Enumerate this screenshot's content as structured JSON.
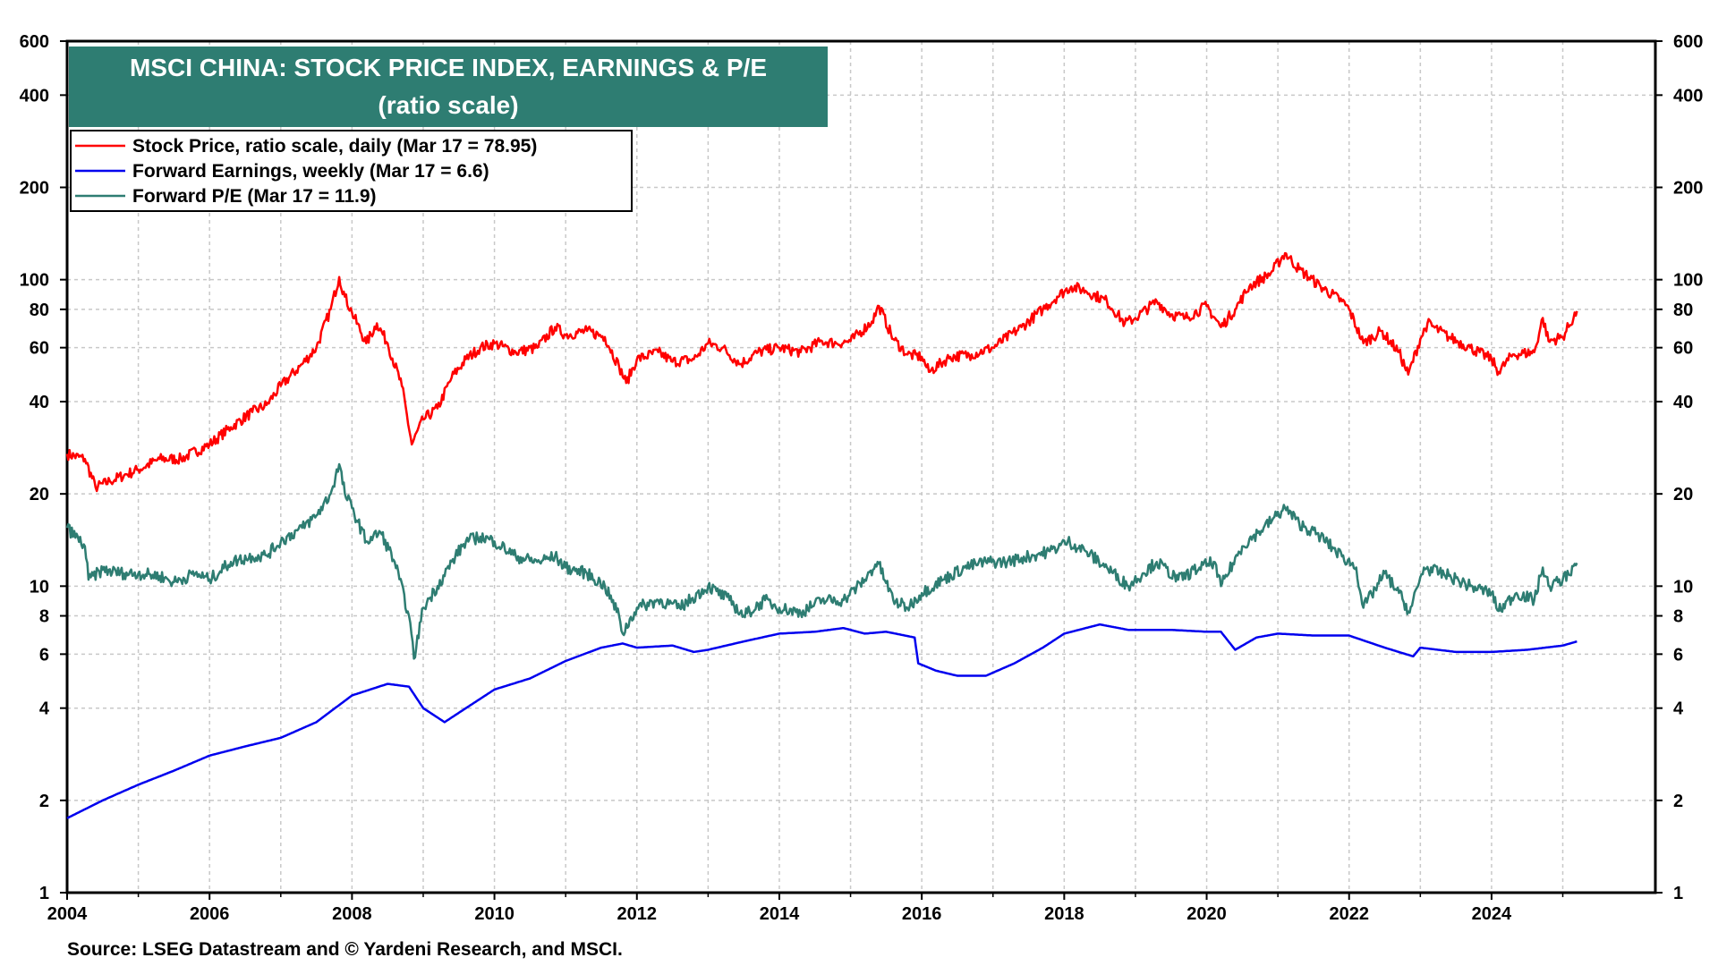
{
  "title_line1": "MSCI CHINA: STOCK PRICE INDEX, EARNINGS & P/E",
  "title_line2": "(ratio scale)",
  "source": "Source: LSEG Datastream and © Yardeni Research, and MSCI.",
  "colors": {
    "title_bg": "#2e7d72",
    "stock_price": "#ff0000",
    "forward_earnings": "#0000ee",
    "forward_pe": "#2e7d72",
    "grid": "#c8c8c8"
  },
  "chart_data": {
    "type": "line",
    "title": "MSCI CHINA: STOCK PRICE INDEX, EARNINGS & P/E",
    "subtitle": "(ratio scale)",
    "y_scale": "log",
    "ylim": [
      1,
      600
    ],
    "xlim": [
      2004,
      2026.3
    ],
    "grid": true,
    "legend_position": "top-left",
    "x_ticks": [
      "2004",
      "2006",
      "2008",
      "2010",
      "2012",
      "2014",
      "2016",
      "2018",
      "2020",
      "2022",
      "2024"
    ],
    "y_ticks": [
      "1",
      "2",
      "4",
      "6",
      "8",
      "10",
      "20",
      "40",
      "60",
      "80",
      "100",
      "200",
      "400",
      "600"
    ],
    "series": [
      {
        "name": "Stock Price, ratio scale, daily (Mar 17 = 78.95)",
        "points": [
          [
            2004.0,
            27
          ],
          [
            2004.25,
            26
          ],
          [
            2004.4,
            21
          ],
          [
            2004.6,
            22
          ],
          [
            2004.8,
            23
          ],
          [
            2005.0,
            24
          ],
          [
            2005.3,
            26
          ],
          [
            2005.6,
            26
          ],
          [
            2006.0,
            29
          ],
          [
            2006.3,
            33
          ],
          [
            2006.6,
            37
          ],
          [
            2006.8,
            39
          ],
          [
            2007.0,
            45
          ],
          [
            2007.3,
            53
          ],
          [
            2007.5,
            60
          ],
          [
            2007.7,
            80
          ],
          [
            2007.82,
            102
          ],
          [
            2007.9,
            88
          ],
          [
            2008.0,
            78
          ],
          [
            2008.2,
            62
          ],
          [
            2008.35,
            72
          ],
          [
            2008.5,
            62
          ],
          [
            2008.7,
            45
          ],
          [
            2008.84,
            29
          ],
          [
            2009.0,
            35
          ],
          [
            2009.2,
            38
          ],
          [
            2009.4,
            48
          ],
          [
            2009.6,
            55
          ],
          [
            2009.8,
            60
          ],
          [
            2010.0,
            62
          ],
          [
            2010.3,
            58
          ],
          [
            2010.6,
            60
          ],
          [
            2010.85,
            70
          ],
          [
            2011.0,
            66
          ],
          [
            2011.3,
            68
          ],
          [
            2011.55,
            65
          ],
          [
            2011.75,
            52
          ],
          [
            2011.85,
            46
          ],
          [
            2012.0,
            55
          ],
          [
            2012.3,
            58
          ],
          [
            2012.5,
            54
          ],
          [
            2012.8,
            55
          ],
          [
            2013.0,
            62
          ],
          [
            2013.2,
            60
          ],
          [
            2013.45,
            53
          ],
          [
            2013.7,
            58
          ],
          [
            2014.0,
            60
          ],
          [
            2014.3,
            58
          ],
          [
            2014.6,
            63
          ],
          [
            2014.8,
            62
          ],
          [
            2015.0,
            63
          ],
          [
            2015.3,
            73
          ],
          [
            2015.4,
            82
          ],
          [
            2015.6,
            64
          ],
          [
            2015.8,
            57
          ],
          [
            2016.0,
            56
          ],
          [
            2016.1,
            50
          ],
          [
            2016.4,
            56
          ],
          [
            2016.7,
            57
          ],
          [
            2017.0,
            60
          ],
          [
            2017.4,
            70
          ],
          [
            2017.7,
            80
          ],
          [
            2017.9,
            88
          ],
          [
            2018.1,
            95
          ],
          [
            2018.3,
            92
          ],
          [
            2018.6,
            85
          ],
          [
            2018.85,
            72
          ],
          [
            2019.0,
            75
          ],
          [
            2019.3,
            85
          ],
          [
            2019.5,
            77
          ],
          [
            2019.7,
            75
          ],
          [
            2020.0,
            82
          ],
          [
            2020.2,
            70
          ],
          [
            2020.4,
            80
          ],
          [
            2020.6,
            95
          ],
          [
            2020.9,
            105
          ],
          [
            2021.1,
            122
          ],
          [
            2021.3,
            108
          ],
          [
            2021.6,
            95
          ],
          [
            2021.9,
            85
          ],
          [
            2022.0,
            80
          ],
          [
            2022.2,
            62
          ],
          [
            2022.45,
            68
          ],
          [
            2022.7,
            58
          ],
          [
            2022.83,
            49
          ],
          [
            2023.0,
            64
          ],
          [
            2023.1,
            72
          ],
          [
            2023.4,
            65
          ],
          [
            2023.7,
            60
          ],
          [
            2024.0,
            55
          ],
          [
            2024.1,
            50
          ],
          [
            2024.3,
            57
          ],
          [
            2024.6,
            58
          ],
          [
            2024.72,
            75
          ],
          [
            2024.8,
            63
          ],
          [
            2025.0,
            65
          ],
          [
            2025.2,
            78.95
          ]
        ]
      },
      {
        "name": "Forward Earnings, weekly (Mar 17 = 6.6)",
        "points": [
          [
            2004.0,
            1.75
          ],
          [
            2004.5,
            2.0
          ],
          [
            2005.0,
            2.25
          ],
          [
            2005.5,
            2.5
          ],
          [
            2006.0,
            2.8
          ],
          [
            2006.5,
            3.0
          ],
          [
            2007.0,
            3.2
          ],
          [
            2007.5,
            3.6
          ],
          [
            2008.0,
            4.4
          ],
          [
            2008.5,
            4.8
          ],
          [
            2008.8,
            4.7
          ],
          [
            2009.0,
            4.0
          ],
          [
            2009.3,
            3.6
          ],
          [
            2009.6,
            4.0
          ],
          [
            2010.0,
            4.6
          ],
          [
            2010.5,
            5.0
          ],
          [
            2011.0,
            5.7
          ],
          [
            2011.5,
            6.3
          ],
          [
            2011.8,
            6.5
          ],
          [
            2012.0,
            6.3
          ],
          [
            2012.5,
            6.4
          ],
          [
            2012.8,
            6.1
          ],
          [
            2013.0,
            6.2
          ],
          [
            2013.5,
            6.6
          ],
          [
            2014.0,
            7.0
          ],
          [
            2014.5,
            7.1
          ],
          [
            2014.9,
            7.3
          ],
          [
            2015.2,
            7.0
          ],
          [
            2015.5,
            7.1
          ],
          [
            2015.9,
            6.8
          ],
          [
            2015.95,
            5.6
          ],
          [
            2016.2,
            5.3
          ],
          [
            2016.5,
            5.1
          ],
          [
            2016.9,
            5.1
          ],
          [
            2017.3,
            5.6
          ],
          [
            2017.7,
            6.3
          ],
          [
            2018.0,
            7.0
          ],
          [
            2018.5,
            7.5
          ],
          [
            2018.9,
            7.2
          ],
          [
            2019.5,
            7.2
          ],
          [
            2020.0,
            7.1
          ],
          [
            2020.2,
            7.1
          ],
          [
            2020.4,
            6.2
          ],
          [
            2020.7,
            6.8
          ],
          [
            2021.0,
            7.0
          ],
          [
            2021.5,
            6.9
          ],
          [
            2022.0,
            6.9
          ],
          [
            2022.5,
            6.3
          ],
          [
            2022.9,
            5.9
          ],
          [
            2023.0,
            6.3
          ],
          [
            2023.5,
            6.1
          ],
          [
            2024.0,
            6.1
          ],
          [
            2024.5,
            6.2
          ],
          [
            2025.0,
            6.4
          ],
          [
            2025.2,
            6.6
          ]
        ]
      },
      {
        "name": "Forward P/E (Mar 17 = 11.9)",
        "points": [
          [
            2004.0,
            15.5
          ],
          [
            2004.25,
            13.5
          ],
          [
            2004.3,
            10.5
          ],
          [
            2004.5,
            11.3
          ],
          [
            2004.8,
            11.0
          ],
          [
            2005.0,
            11.0
          ],
          [
            2005.3,
            10.8
          ],
          [
            2005.5,
            10.3
          ],
          [
            2005.8,
            11.0
          ],
          [
            2006.0,
            10.5
          ],
          [
            2006.3,
            12.0
          ],
          [
            2006.6,
            12.5
          ],
          [
            2006.8,
            12.6
          ],
          [
            2007.0,
            14.0
          ],
          [
            2007.3,
            15.5
          ],
          [
            2007.5,
            17.0
          ],
          [
            2007.7,
            20.0
          ],
          [
            2007.82,
            25.0
          ],
          [
            2007.9,
            20.0
          ],
          [
            2008.0,
            18.0
          ],
          [
            2008.2,
            14.0
          ],
          [
            2008.4,
            15.0
          ],
          [
            2008.6,
            12.0
          ],
          [
            2008.8,
            8.0
          ],
          [
            2008.87,
            5.8
          ],
          [
            2009.0,
            8.5
          ],
          [
            2009.2,
            10.0
          ],
          [
            2009.45,
            12.5
          ],
          [
            2009.6,
            14.0
          ],
          [
            2009.8,
            14.5
          ],
          [
            2010.0,
            14.0
          ],
          [
            2010.3,
            12.5
          ],
          [
            2010.6,
            12.0
          ],
          [
            2010.85,
            12.5
          ],
          [
            2011.0,
            11.5
          ],
          [
            2011.3,
            11.0
          ],
          [
            2011.55,
            10.0
          ],
          [
            2011.75,
            8.0
          ],
          [
            2011.8,
            7.0
          ],
          [
            2012.0,
            8.5
          ],
          [
            2012.3,
            9.0
          ],
          [
            2012.6,
            8.5
          ],
          [
            2013.0,
            10.0
          ],
          [
            2013.3,
            9.0
          ],
          [
            2013.5,
            8.0
          ],
          [
            2013.8,
            9.0
          ],
          [
            2014.0,
            8.5
          ],
          [
            2014.3,
            8.2
          ],
          [
            2014.6,
            9.0
          ],
          [
            2014.9,
            9.0
          ],
          [
            2015.2,
            10.5
          ],
          [
            2015.38,
            12.0
          ],
          [
            2015.6,
            9.0
          ],
          [
            2015.8,
            8.5
          ],
          [
            2016.0,
            9.5
          ],
          [
            2016.3,
            10.5
          ],
          [
            2016.6,
            11.5
          ],
          [
            2016.9,
            12.0
          ],
          [
            2017.2,
            12.0
          ],
          [
            2017.5,
            12.5
          ],
          [
            2017.8,
            13.0
          ],
          [
            2018.05,
            14.0
          ],
          [
            2018.3,
            13.0
          ],
          [
            2018.6,
            11.5
          ],
          [
            2018.9,
            10.0
          ],
          [
            2019.1,
            11.0
          ],
          [
            2019.3,
            12.0
          ],
          [
            2019.6,
            10.5
          ],
          [
            2019.9,
            11.5
          ],
          [
            2020.1,
            12.0
          ],
          [
            2020.2,
            10.0
          ],
          [
            2020.5,
            13.5
          ],
          [
            2020.8,
            15.5
          ],
          [
            2021.1,
            18.0
          ],
          [
            2021.3,
            16.0
          ],
          [
            2021.6,
            14.5
          ],
          [
            2021.9,
            12.5
          ],
          [
            2022.1,
            11.5
          ],
          [
            2022.2,
            8.5
          ],
          [
            2022.5,
            11.0
          ],
          [
            2022.7,
            9.5
          ],
          [
            2022.85,
            8.2
          ],
          [
            2023.05,
            11.5
          ],
          [
            2023.4,
            10.8
          ],
          [
            2023.7,
            10.0
          ],
          [
            2024.0,
            9.5
          ],
          [
            2024.1,
            8.3
          ],
          [
            2024.35,
            9.5
          ],
          [
            2024.6,
            9.0
          ],
          [
            2024.72,
            11.5
          ],
          [
            2024.8,
            10.0
          ],
          [
            2025.0,
            10.5
          ],
          [
            2025.2,
            11.9
          ]
        ]
      }
    ]
  }
}
